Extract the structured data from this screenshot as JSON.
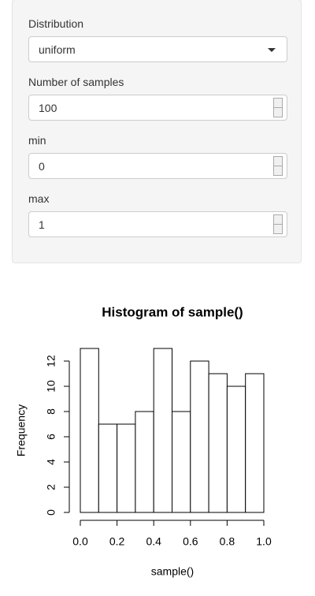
{
  "form": {
    "fields": [
      {
        "label": "Distribution",
        "value": "uniform",
        "kind": "select"
      },
      {
        "label": "Number of samples",
        "value": "100",
        "kind": "number"
      },
      {
        "label": "min",
        "value": "0",
        "kind": "number"
      },
      {
        "label": "max",
        "value": "1",
        "kind": "number"
      }
    ]
  },
  "chart_data": {
    "type": "histogram",
    "title": "Histogram of sample()",
    "x_label": "sample()",
    "y_label": "Frequency",
    "bins": [
      0,
      0.1,
      0.2,
      0.3,
      0.4,
      0.5,
      0.6,
      0.7,
      0.8,
      0.9,
      1.0
    ],
    "counts": [
      13,
      7,
      7,
      8,
      13,
      8,
      12,
      11,
      10,
      11
    ],
    "color": "#ffffff",
    "xlim": [
      0,
      1
    ],
    "ylim": [
      0,
      13
    ],
    "xticks": [
      {
        "value": 0,
        "label": "0.0"
      },
      0.2,
      0.4,
      0.6,
      0.8,
      {
        "value": 1,
        "label": "1.0"
      }
    ],
    "yticks": [
      0,
      2,
      4,
      6,
      8,
      10,
      12
    ]
  }
}
